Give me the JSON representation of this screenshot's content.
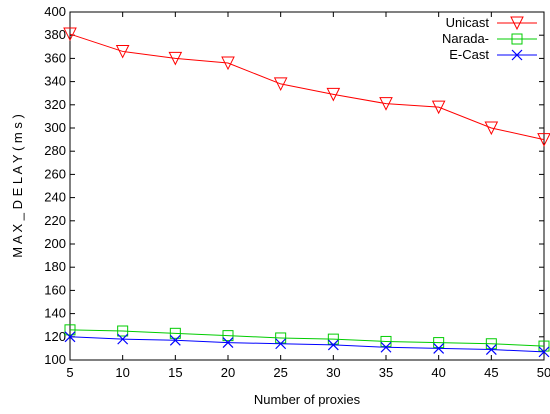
{
  "chart_data": {
    "type": "line",
    "xlabel": "Number of proxies",
    "ylabel": "M A X _ D E L A Y ( m s )",
    "x": [
      5,
      10,
      15,
      20,
      25,
      30,
      35,
      40,
      45,
      50
    ],
    "xlim": [
      5,
      50
    ],
    "ylim": [
      100,
      400
    ],
    "xticks": [
      5,
      10,
      15,
      20,
      25,
      30,
      35,
      40,
      45,
      50
    ],
    "yticks": [
      100,
      120,
      140,
      160,
      180,
      200,
      220,
      240,
      260,
      280,
      300,
      320,
      340,
      360,
      380,
      400
    ],
    "grid": false,
    "legend_position": "top-right",
    "series": [
      {
        "name": "Unicast",
        "marker": "triangle-down",
        "color": "#ff0000",
        "values": [
          381,
          366,
          360,
          356,
          338,
          329,
          321,
          318,
          300,
          290
        ]
      },
      {
        "name": "Narada-",
        "marker": "square",
        "color": "#00cc00",
        "values": [
          126,
          125,
          123,
          121,
          119,
          118,
          116,
          115,
          114,
          112
        ]
      },
      {
        "name": "E-Cast",
        "marker": "x",
        "color": "#0000ff",
        "values": [
          120,
          118,
          117,
          115,
          114,
          113,
          111,
          110,
          109,
          107
        ]
      }
    ]
  }
}
